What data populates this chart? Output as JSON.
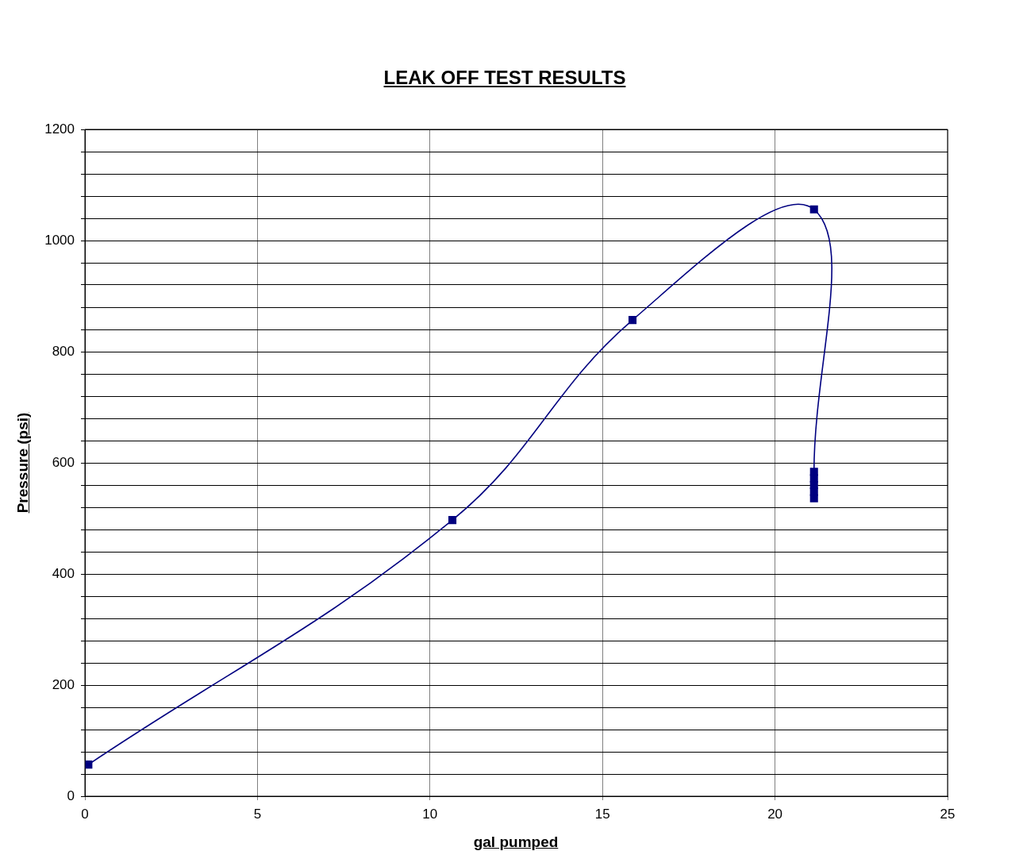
{
  "chart_data": {
    "type": "line",
    "title": "LEAK OFF TEST RESULTS",
    "xlabel": "gal pumped",
    "ylabel": "Pressure (psi)",
    "x": [
      0.1,
      10.65,
      15.87,
      21.13,
      21.13,
      21.13,
      21.13,
      21.13,
      21.13
    ],
    "series": [
      {
        "color": "#000080",
        "values": [
          57,
          497,
          857,
          1056,
          584,
          572,
          560,
          548,
          536
        ]
      }
    ],
    "xlim": [
      0,
      25
    ],
    "xticks": [
      0,
      5,
      10,
      15,
      20,
      25
    ],
    "ylim": [
      0,
      1200
    ],
    "yticks": [
      0,
      {
        "value": 40,
        "label": null
      },
      {
        "value": 80,
        "label": null
      },
      {
        "value": 120,
        "label": null
      },
      {
        "value": 160,
        "label": null
      },
      200,
      {
        "value": 240,
        "label": null
      },
      {
        "value": 280,
        "label": null
      },
      {
        "value": 320,
        "label": null
      },
      {
        "value": 360,
        "label": null
      },
      400,
      {
        "value": 440,
        "label": null
      },
      {
        "value": 480,
        "label": null
      },
      {
        "value": 520,
        "label": null
      },
      {
        "value": 560,
        "label": null
      },
      600,
      {
        "value": 640,
        "label": null
      },
      {
        "value": 680,
        "label": null
      },
      {
        "value": 720,
        "label": null
      },
      {
        "value": 760,
        "label": null
      },
      800,
      {
        "value": 840,
        "label": null
      },
      {
        "value": 880,
        "label": null
      },
      {
        "value": 920,
        "label": null
      },
      {
        "value": 960,
        "label": null
      },
      1000,
      {
        "value": 1040,
        "label": null
      },
      {
        "value": 1080,
        "label": null
      },
      {
        "value": 1120,
        "label": null
      },
      {
        "value": 1160,
        "label": null
      },
      1200
    ],
    "grid": true,
    "marker": "square",
    "line_style": "solid",
    "legend": false
  }
}
